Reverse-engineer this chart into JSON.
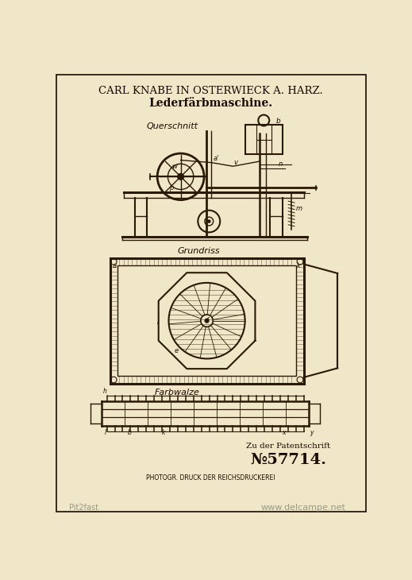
{
  "bg_color": "#f0e6c8",
  "border_color": "#2a1a0a",
  "title_line1": "CARL KNABE IN OSTERWIECK A. HARZ.",
  "title_line2": "Lederfärbmaschine.",
  "label_querschnitt": "Querschnitt",
  "label_grundriss": "Grundriss",
  "label_farbwalze": "Farbwalze",
  "patent_label": "Zu der Patentschrift",
  "patent_number": "№57714.",
  "footer": "PHOTOGR. DRUCK DER REICHSDRUCKEREI",
  "watermark": "www.delcampe.net",
  "watermark_left": "Pit2fast",
  "ink_color": "#1a0a00",
  "line_color": "#2a1a05"
}
